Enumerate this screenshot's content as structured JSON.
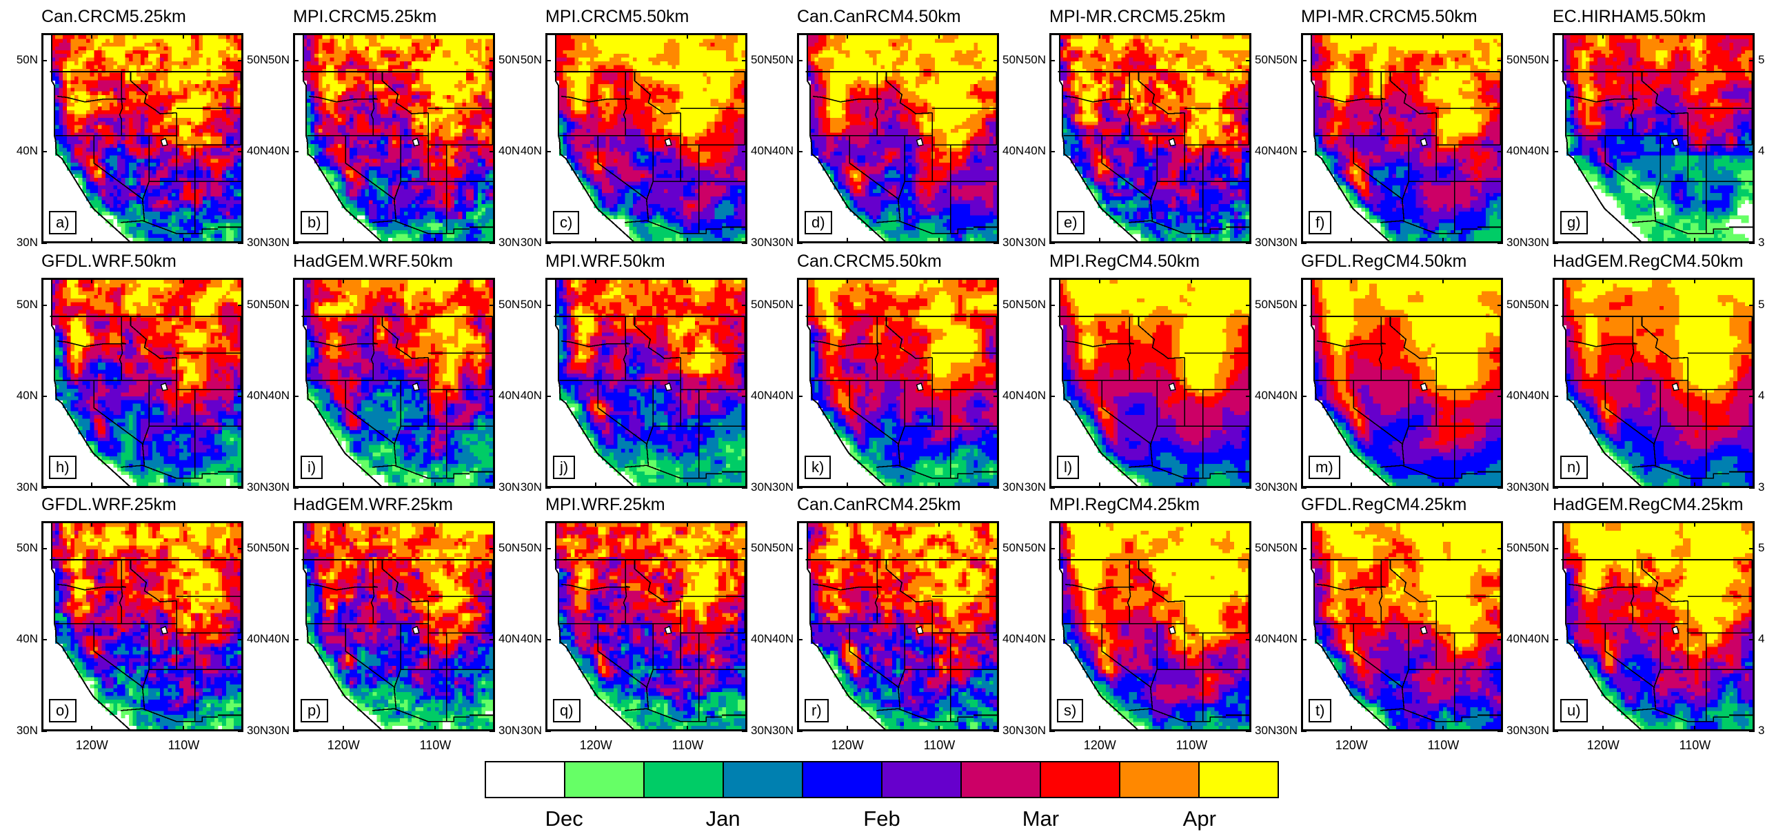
{
  "figure": {
    "panels": [
      {
        "title": "Can.CRCM5.25km",
        "label": "a)",
        "seed": 11,
        "regime": "res25",
        "bias": 0.4
      },
      {
        "title": "MPI.CRCM5.25km",
        "label": "b)",
        "seed": 12,
        "regime": "res25",
        "bias": 0.4
      },
      {
        "title": "MPI.CRCM5.50km",
        "label": "c)",
        "seed": 13,
        "regime": "crcm50",
        "bias": 0.6
      },
      {
        "title": "Can.CanRCM4.50km",
        "label": "d)",
        "seed": 14,
        "regime": "crcm50",
        "bias": 0.7
      },
      {
        "title": "MPI-MR.CRCM5.25km",
        "label": "e)",
        "seed": 15,
        "regime": "res25",
        "bias": 0.5
      },
      {
        "title": "MPI-MR.CRCM5.50km",
        "label": "f)",
        "seed": 16,
        "regime": "crcm50",
        "bias": 0.6
      },
      {
        "title": "EC.HIRHAM5.50km",
        "label": "g)",
        "seed": 17,
        "regime": "hirham",
        "bias": -0.6
      },
      {
        "title": "GFDL.WRF.50km",
        "label": "h)",
        "seed": 21,
        "regime": "wrf",
        "bias": -0.2
      },
      {
        "title": "HadGEM.WRF.50km",
        "label": "i)",
        "seed": 22,
        "regime": "wrf",
        "bias": -0.3
      },
      {
        "title": "MPI.WRF.50km",
        "label": "j)",
        "seed": 23,
        "regime": "wrf",
        "bias": -0.4
      },
      {
        "title": "Can.CRCM5.50km",
        "label": "k)",
        "seed": 24,
        "regime": "crcm50",
        "bias": 0.2
      },
      {
        "title": "MPI.RegCM4.50km",
        "label": "l)",
        "seed": 25,
        "regime": "regcm",
        "bias": 0.8
      },
      {
        "title": "GFDL.RegCM4.50km",
        "label": "m)",
        "seed": 26,
        "regime": "regcm",
        "bias": 1.0
      },
      {
        "title": "HadGEM.RegCM4.50km",
        "label": "n)",
        "seed": 27,
        "regime": "regcm",
        "bias": 0.8
      },
      {
        "title": "GFDL.WRF.25km",
        "label": "o)",
        "seed": 31,
        "regime": "res25",
        "bias": 0.0
      },
      {
        "title": "HadGEM.WRF.25km",
        "label": "p)",
        "seed": 32,
        "regime": "res25",
        "bias": -0.3
      },
      {
        "title": "MPI.WRF.25km",
        "label": "q)",
        "seed": 33,
        "regime": "res25",
        "bias": -0.1
      },
      {
        "title": "Can.CanRCM4.25km",
        "label": "r)",
        "seed": 34,
        "regime": "res25",
        "bias": 0.3
      },
      {
        "title": "MPI.RegCM4.25km",
        "label": "s)",
        "seed": 35,
        "regime": "regcm25",
        "bias": 1.1
      },
      {
        "title": "GFDL.RegCM4.25km",
        "label": "t)",
        "seed": 36,
        "regime": "regcm25",
        "bias": 1.1
      },
      {
        "title": "HadGEM.RegCM4.25km",
        "label": "u)",
        "seed": 37,
        "regime": "regcm25",
        "bias": 1.0
      }
    ],
    "lat_ticks": [
      "30N",
      "40N",
      "50N"
    ],
    "lon_ticks": [
      "120W",
      "110W"
    ],
    "colorbar": {
      "colors": [
        "#ffffff",
        "#66ff66",
        "#00cc66",
        "#0080b0",
        "#0000ff",
        "#6600cc",
        "#cc0066",
        "#ff0000",
        "#ff8800",
        "#ffff00"
      ],
      "labels": [
        "Dec",
        "Jan",
        "Feb",
        "Mar",
        "Apr"
      ]
    }
  }
}
